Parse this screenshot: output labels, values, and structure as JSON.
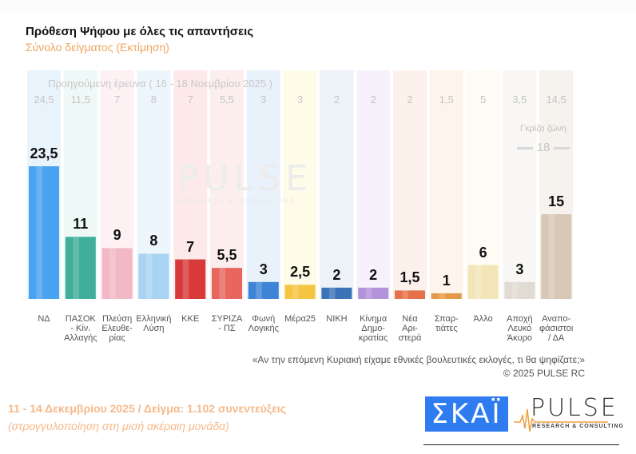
{
  "title": "Πρόθεση Ψήφου με όλες τις απαντήσεις",
  "subtitle": "Σύνολο δείγματος   (Εκτίμηση)",
  "previous_survey_label": "Προηγούμενη έρευνα ( 16 - 18 Νοεμβρίου 2025 )",
  "gray_zone": {
    "label": "Γκρίζα ζώνη",
    "value": "18"
  },
  "watermark": {
    "name": "PULSE",
    "tagline": "RESEARCH & CONSULTING"
  },
  "question": "«Αν την επόμενη Κυριακή είχαμε εθνικές βουλευτικές εκλογές, τι θα ψηφίζατε;»",
  "copyright": "©  2025  PULSE RC",
  "footer": {
    "line1": "11 - 14 Δεκεμβρίου 2025  /  Δείγμα:  1.102 συνεντεύξεις",
    "line2": "(στρογγυλοποίηση στη μισή ακέραιη μονάδα)"
  },
  "logos": {
    "skai": "ΣΚΑΪ",
    "pulse": "PULSE",
    "pulse_sub": "RESEARCH & CONSULTING"
  },
  "chart_data": {
    "type": "bar",
    "title": "Πρόθεση Ψήφου με όλες τις απαντήσεις",
    "subtitle": "Σύνολο δείγματος (Εκτίμηση)",
    "xlabel": "",
    "ylabel": "",
    "ylim": [
      0,
      25
    ],
    "grid": false,
    "legend": "none",
    "categories": [
      "ΝΔ",
      "ΠΑΣΟΚ - Κίν. Αλλαγής",
      "Πλεύση Ελευθε-ρίας",
      "Ελληνική Λύση",
      "ΚΚΕ",
      "ΣΥΡΙΖΑ - ΠΣ",
      "Φωνή Λογικής",
      "Μέρα25",
      "ΝΙΚΗ",
      "Κίνημα Δημο-κρατίας",
      "Νέα Αρι-στερά",
      "Σπαρ-τιάτες",
      "Άλλο",
      "Αποχή Λευκό Άκυρο",
      "Αναπο-φάσιστοι / ΔΑ"
    ],
    "display_labels": [
      "ΝΔ",
      "ΠΑΣΟΚ\n- Κίν.\nΑλλαγής",
      "Πλεύση\nΕλευθε-\nρίας",
      "Ελληνική\nΛύση",
      "ΚΚΕ",
      "ΣΥΡΙΖΑ\n- ΠΣ",
      "Φωνή\nΛογικής",
      "Μέρα25",
      "ΝΙΚΗ",
      "Κίνημα\nΔημο-\nκρατίας",
      "Νέα\nΑρι-\nστερά",
      "Σπαρ-\nτιάτες",
      "Άλλο",
      "Αποχή\nΛευκό\nΆκυρο",
      "Αναπο-\nφάσιστοι\n/ ΔΑ"
    ],
    "series": [
      {
        "name": "11 - 14 Δεκεμβρίου 2025",
        "values": [
          23.5,
          11,
          9,
          8,
          7,
          5.5,
          3,
          2.5,
          2,
          2,
          1.5,
          1,
          6,
          3,
          15
        ]
      },
      {
        "name": "Προηγούμενη έρευνα (16 - 18 Νοεμβρίου 2025)",
        "values": [
          24.5,
          11.5,
          7,
          8,
          7,
          5.5,
          3,
          3,
          2,
          2,
          2,
          1.5,
          5,
          3.5,
          14.5
        ]
      }
    ],
    "value_labels": [
      "23,5",
      "11",
      "9",
      "8",
      "7",
      "5,5",
      "3",
      "2,5",
      "2",
      "2",
      "1,5",
      "1",
      "6",
      "3",
      "15"
    ],
    "previous_labels": [
      "24,5",
      "11,5",
      "7",
      "8",
      "7",
      "5,5",
      "3",
      "3",
      "2",
      "2",
      "2",
      "1,5",
      "5",
      "3,5",
      "14,5"
    ],
    "colors": [
      "#4aa3f0",
      "#3fae9a",
      "#f2b8c6",
      "#a9d3f2",
      "#d83a3a",
      "#e7675f",
      "#3d84d6",
      "#f5c542",
      "#3b73b9",
      "#b393d9",
      "#e5714a",
      "#e59a4a",
      "#f2e6b8",
      "#e0dbd3",
      "#d7c8b5"
    ],
    "column_tints": [
      "#e9f3fc",
      "#eef8f6",
      "#fdf1f4",
      "#eef6fd",
      "#fde9e9",
      "#fdeeee",
      "#e9f1fb",
      "#fffbe9",
      "#edf2f8",
      "#f6f1fb",
      "#fdf1ec",
      "#fdf5ec",
      "#fdfbf3",
      "#f8f7f5",
      "#f6f2ed"
    ]
  }
}
